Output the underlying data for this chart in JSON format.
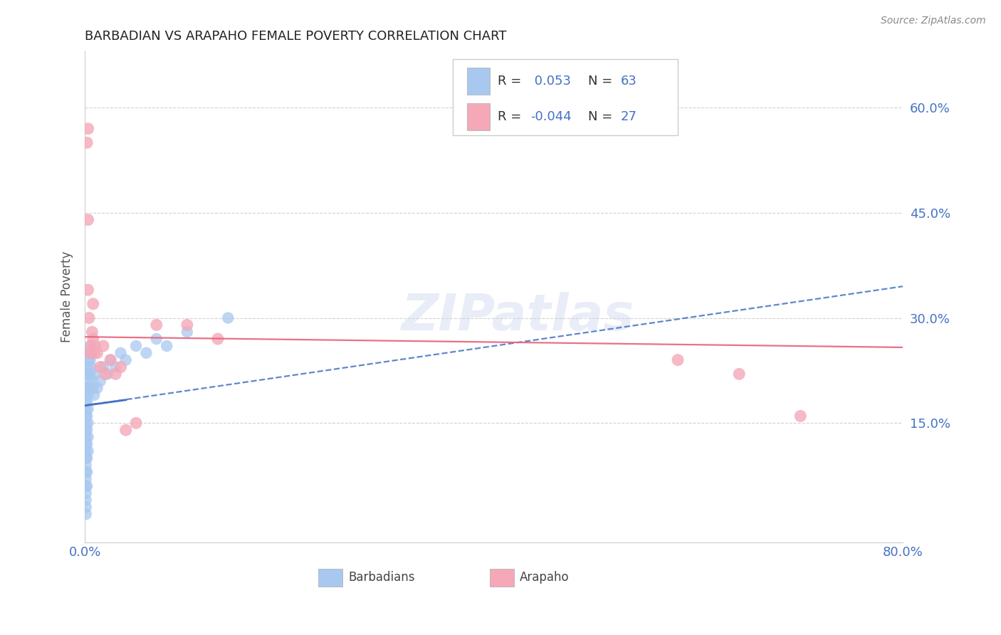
{
  "title": "BARBADIAN VS ARAPAHO FEMALE POVERTY CORRELATION CHART",
  "source": "Source: ZipAtlas.com",
  "ylabel": "Female Poverty",
  "xlim": [
    0.0,
    0.8
  ],
  "ylim": [
    -0.02,
    0.68
  ],
  "xtick_vals": [
    0.0,
    0.2,
    0.4,
    0.6,
    0.8
  ],
  "xtick_labels": [
    "0.0%",
    "",
    "",
    "",
    "80.0%"
  ],
  "ytick_vals": [
    0.15,
    0.3,
    0.45,
    0.6
  ],
  "ytick_labels": [
    "15.0%",
    "30.0%",
    "45.0%",
    "60.0%"
  ],
  "barbadian_color": "#a8c8f0",
  "arapaho_color": "#f4a8b8",
  "barbadian_line_color": "#4472c4",
  "arapaho_line_color": "#e8607a",
  "R_barbadian": 0.053,
  "N_barbadian": 63,
  "R_arapaho": -0.044,
  "N_arapaho": 27,
  "barbadian_x": [
    0.001,
    0.001,
    0.001,
    0.001,
    0.001,
    0.001,
    0.001,
    0.001,
    0.001,
    0.001,
    0.001,
    0.001,
    0.001,
    0.001,
    0.001,
    0.001,
    0.001,
    0.001,
    0.001,
    0.001,
    0.002,
    0.002,
    0.002,
    0.002,
    0.002,
    0.002,
    0.002,
    0.002,
    0.002,
    0.002,
    0.003,
    0.003,
    0.003,
    0.003,
    0.003,
    0.003,
    0.003,
    0.004,
    0.004,
    0.004,
    0.005,
    0.005,
    0.005,
    0.006,
    0.006,
    0.007,
    0.008,
    0.009,
    0.01,
    0.012,
    0.015,
    0.018,
    0.022,
    0.025,
    0.03,
    0.035,
    0.04,
    0.05,
    0.06,
    0.07,
    0.08,
    0.1,
    0.14
  ],
  "barbadian_y": [
    0.2,
    0.22,
    0.19,
    0.18,
    0.16,
    0.14,
    0.12,
    0.1,
    0.08,
    0.06,
    0.04,
    0.03,
    0.02,
    0.17,
    0.15,
    0.13,
    0.11,
    0.09,
    0.07,
    0.05,
    0.22,
    0.2,
    0.18,
    0.16,
    0.14,
    0.12,
    0.1,
    0.08,
    0.06,
    0.25,
    0.23,
    0.21,
    0.19,
    0.17,
    0.15,
    0.13,
    0.11,
    0.24,
    0.22,
    0.2,
    0.26,
    0.24,
    0.22,
    0.25,
    0.23,
    0.21,
    0.2,
    0.19,
    0.22,
    0.2,
    0.21,
    0.23,
    0.22,
    0.24,
    0.23,
    0.25,
    0.24,
    0.26,
    0.25,
    0.27,
    0.26,
    0.28,
    0.3
  ],
  "arapaho_x": [
    0.002,
    0.003,
    0.003,
    0.004,
    0.005,
    0.006,
    0.007,
    0.008,
    0.009,
    0.01,
    0.012,
    0.015,
    0.018,
    0.02,
    0.025,
    0.03,
    0.035,
    0.04,
    0.05,
    0.07,
    0.1,
    0.13,
    0.58,
    0.64,
    0.7,
    0.003,
    0.008
  ],
  "arapaho_y": [
    0.55,
    0.57,
    0.44,
    0.3,
    0.25,
    0.26,
    0.28,
    0.27,
    0.25,
    0.26,
    0.25,
    0.23,
    0.26,
    0.22,
    0.24,
    0.22,
    0.23,
    0.14,
    0.15,
    0.29,
    0.29,
    0.27,
    0.24,
    0.22,
    0.16,
    0.34,
    0.32
  ],
  "watermark_text": "ZIPatlas",
  "background_color": "#ffffff",
  "grid_color": "#cccccc",
  "title_color": "#222222",
  "source_color": "#888888",
  "axis_label_color": "#555555",
  "tick_label_color": "#4472c4"
}
